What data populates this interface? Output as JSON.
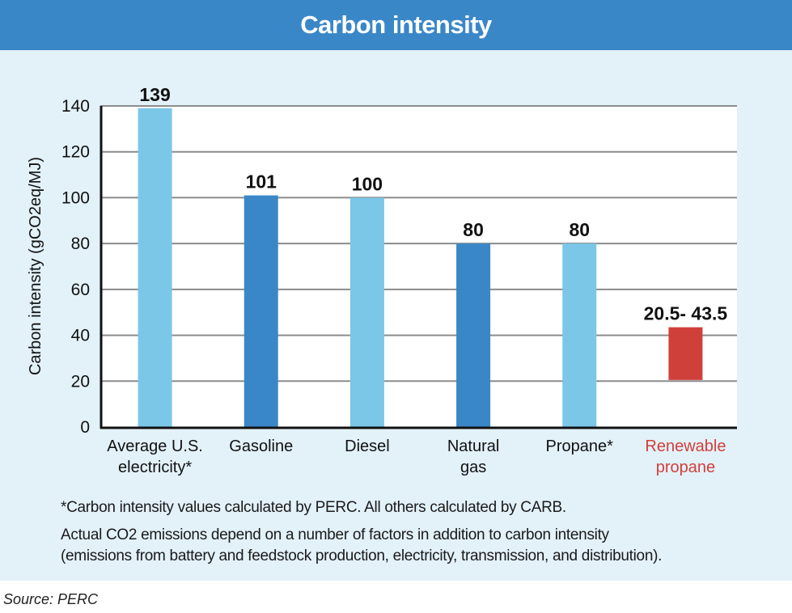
{
  "chart_data": {
    "type": "bar",
    "title": "Carbon intensity",
    "xlabel": "",
    "ylabel": "Carbon intensity (gCO2eq/MJ)",
    "ylim": [
      0,
      140
    ],
    "yticks": [
      0,
      20,
      40,
      60,
      80,
      100,
      120,
      140
    ],
    "grid": true,
    "categories": [
      [
        "Average U.S.",
        "electricity*"
      ],
      [
        "Gasoline"
      ],
      [
        "Diesel"
      ],
      [
        "Natural",
        "gas"
      ],
      [
        "Propane*"
      ],
      [
        "Renewable",
        "propane"
      ]
    ],
    "bars": [
      {
        "low": 0,
        "high": 139,
        "label": "139",
        "color": "#7ac7e8",
        "label_color": "#111111"
      },
      {
        "low": 0,
        "high": 101,
        "label": "101",
        "color": "#3a87c8",
        "label_color": "#111111"
      },
      {
        "low": 0,
        "high": 100,
        "label": "100",
        "color": "#7ac7e8",
        "label_color": "#111111"
      },
      {
        "low": 0,
        "high": 80,
        "label": "80",
        "color": "#3a87c8",
        "label_color": "#111111"
      },
      {
        "low": 0,
        "high": 80,
        "label": "80",
        "color": "#7ac7e8",
        "label_color": "#111111"
      },
      {
        "low": 20.5,
        "high": 43.5,
        "label": "20.5- 43.5",
        "color": "#d0403a",
        "label_color": "#111111",
        "category_color": "#d0403a"
      }
    ]
  },
  "footnotes": {
    "line1": "*Carbon intensity values calculated by PERC. All others calculated by CARB.",
    "line2": "Actual CO2 emissions depend on a number of factors in addition to carbon intensity",
    "line3": "(emissions from battery and feedstock production, electricity, transmission, and distribution)."
  },
  "source": "Source: PERC"
}
